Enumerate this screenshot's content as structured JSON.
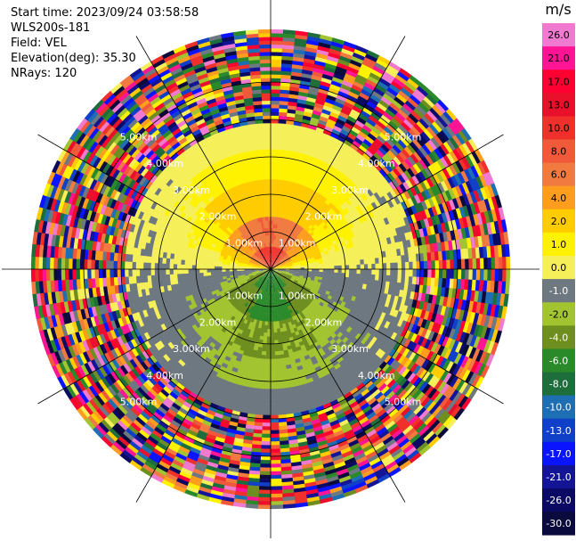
{
  "header": {
    "start_time": "Start time: 2023/09/24 03:58:58",
    "instrument": "WLS200s-181",
    "field": "Field: VEL",
    "elevation": "Elevation(deg): 35.30",
    "nrays": "NRays: 120"
  },
  "chart_data": {
    "type": "heatmap",
    "subtype": "ppi-polar",
    "range_rings_km": [
      1.0,
      2.0,
      3.0,
      4.0,
      5.0
    ],
    "ring_labels": [
      "1.00km",
      "2.00km",
      "3.00km",
      "4.00km",
      "5.00km"
    ],
    "max_range_km": 6.3,
    "n_rays": 120,
    "spokes_deg": [
      0,
      30,
      60,
      90,
      120,
      150,
      180,
      210,
      240,
      270,
      300,
      330
    ],
    "colorbar": {
      "unit": "m/s",
      "ticks": [
        "26.0",
        "21.0",
        "17.0",
        "13.0",
        "10.0",
        "8.0",
        "6.0",
        "4.0",
        "2.0",
        "1.0",
        "0.0",
        "-1.0",
        "-2.0",
        "-4.0",
        "-6.0",
        "-8.0",
        "-10.0",
        "-13.0",
        "-17.0",
        "-21.0",
        "-26.0",
        "-30.0"
      ],
      "colors": [
        "#f07ad0",
        "#ff1493",
        "#ff0033",
        "#e8102a",
        "#f0302a",
        "#f05a3a",
        "#f07a40",
        "#ff9d1e",
        "#ffcc00",
        "#fff200",
        "#f5f05a",
        "#6e7880",
        "#a2c430",
        "#6e8e20",
        "#2a8a2a",
        "#1e6e3c",
        "#1e6eb4",
        "#1040c8",
        "#0a14ff",
        "#141496",
        "#0a0a64",
        "#0a0a3c"
      ]
    },
    "profile": [
      {
        "to_km": 0.55,
        "upwind": 12.0,
        "downwind": -6.0
      },
      {
        "to_km": 1.3,
        "upwind": 8.0,
        "downwind": -4.5
      },
      {
        "to_km": 2.4,
        "upwind": 3.0,
        "downwind": -2.2
      },
      {
        "to_km": 3.2,
        "upwind": 1.6,
        "downwind": -1.3
      },
      {
        "to_km": 3.8,
        "upwind": 0.4,
        "downwind": -0.4
      }
    ],
    "upwind_bearing_deg": 0,
    "noise_beyond_km": 3.85
  }
}
